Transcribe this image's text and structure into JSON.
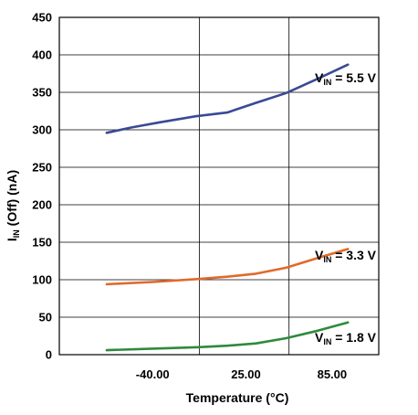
{
  "chart_data": {
    "type": "line",
    "xlabel_main": "Temperature (",
    "xlabel_unit": "°C",
    "xlabel_end": ")",
    "ylabel_main": "I",
    "ylabel_sub": "IN",
    "ylabel_rest": " (Off) (nA)",
    "x_ticks": [
      "-40.00",
      "25.00",
      "85.00"
    ],
    "x_tick_values": [
      -40,
      25,
      85
    ],
    "xlim": [
      -105,
      117.5
    ],
    "ylim": [
      0,
      450
    ],
    "y_ticks": [
      0,
      50,
      100,
      150,
      200,
      250,
      300,
      350,
      400,
      450
    ],
    "grid": true,
    "series": [
      {
        "name_main": "V",
        "name_sub": "IN",
        "name_rest": " = 5.5 V",
        "color": "#3a4a95",
        "x": [
          -72,
          -55,
          -35,
          -10,
          12,
          32,
          53,
          75,
          96
        ],
        "y": [
          296,
          303,
          310,
          318,
          323,
          336,
          349,
          368,
          387
        ]
      },
      {
        "name_main": "V",
        "name_sub": "IN",
        "name_rest": " = 3.3 V",
        "color": "#e06a2b",
        "x": [
          -72,
          -40,
          -8,
          12,
          32,
          53,
          75,
          96
        ],
        "y": [
          94,
          97,
          101,
          104,
          108,
          116,
          129,
          141
        ]
      },
      {
        "name_main": "V",
        "name_sub": "IN",
        "name_rest": " = 1.8 V",
        "color": "#2e8a3e",
        "x": [
          -72,
          -40,
          -8,
          12,
          32,
          53,
          75,
          96
        ],
        "y": [
          6,
          8,
          10,
          12,
          15,
          22,
          32,
          43
        ]
      }
    ]
  }
}
